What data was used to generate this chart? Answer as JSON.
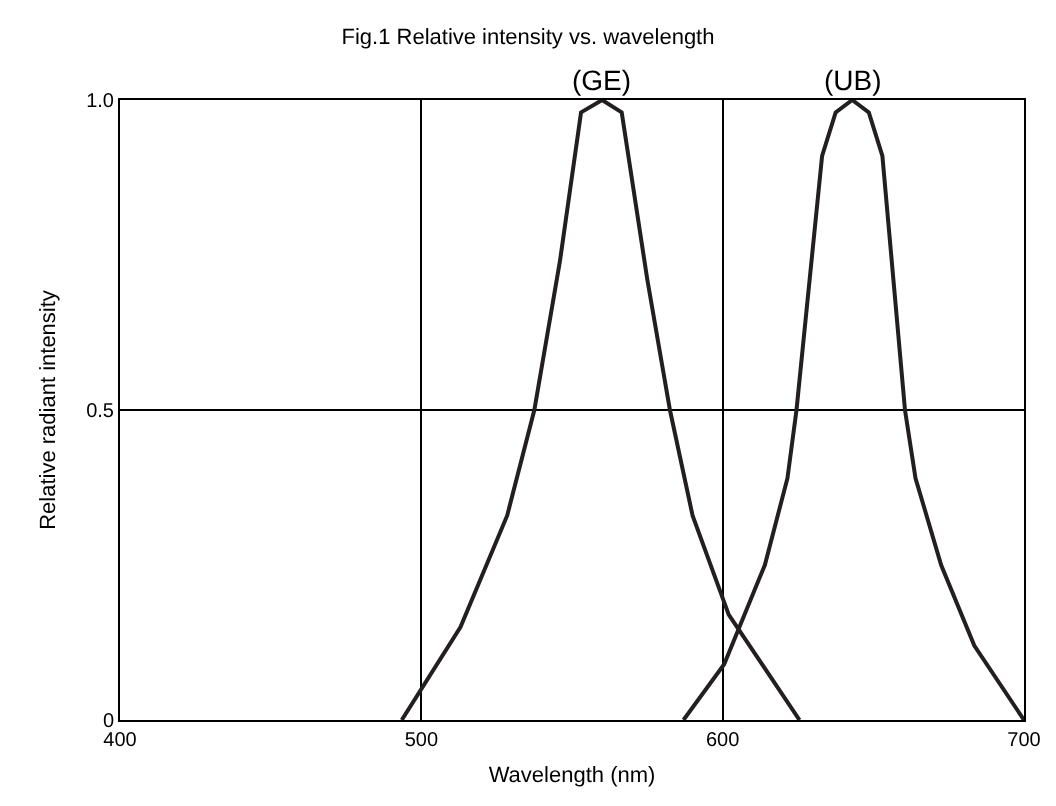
{
  "chart_data": {
    "type": "line",
    "title": "Fig.1 Relative intensity vs. wavelength",
    "xlabel": "Wavelength (nm)",
    "ylabel": "Relative radiant intensity",
    "series": [
      {
        "color": "#231f20",
        "x": [
          493.5,
          513,
          528.5,
          537.5,
          546,
          553,
          560,
          566.5,
          575,
          582.5,
          590,
          602,
          625.5
        ],
        "values": [
          0,
          0.15,
          0.33,
          0.5,
          0.74,
          0.98,
          1,
          0.98,
          0.71,
          0.5,
          0.33,
          0.17,
          0
        ]
      },
      {
        "color": "#231f20",
        "x": [
          587,
          600.5,
          614,
          621.5,
          624.5,
          633,
          637.5,
          643,
          648.5,
          653,
          660.5,
          664,
          672.5,
          683.5,
          700
        ],
        "values": [
          0,
          0.09,
          0.25,
          0.39,
          0.5,
          0.91,
          0.98,
          1,
          0.98,
          0.91,
          0.5,
          0.39,
          0.25,
          0.12,
          0
        ]
      }
    ],
    "annotations": [
      {
        "text": "(GE)",
        "x": 560,
        "y": 1
      },
      {
        "text": "(UB)",
        "x": 643,
        "y": 1
      }
    ],
    "xlim": [
      400,
      700
    ],
    "xticks": [
      400,
      500,
      600,
      700
    ],
    "ylim": [
      0,
      1
    ],
    "yticks": [
      0,
      0.5,
      {
        "value": 1,
        "label": "1.0"
      }
    ],
    "grid": true,
    "marker": "none",
    "line_style": "solid"
  }
}
